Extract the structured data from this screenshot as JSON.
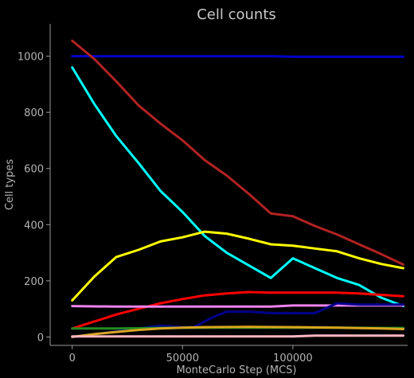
{
  "chart_data": {
    "type": "line",
    "title": "Cell counts",
    "xlabel": "MonteCarlo Step (MCS)",
    "ylabel": "Cell types",
    "xlim": [
      -10000,
      152000
    ],
    "ylim": [
      -30,
      1115
    ],
    "xticks": [
      0,
      50000,
      100000
    ],
    "yticks": [
      0,
      200,
      400,
      600,
      800,
      1000
    ],
    "legend": "none",
    "grid": false,
    "series": [
      {
        "color": "#0000cc",
        "x": [
          0,
          20000,
          60000,
          90000,
          100000,
          150000
        ],
        "y": [
          1000,
          1000,
          1000,
          1000,
          998,
          998
        ]
      },
      {
        "color": "#b22222",
        "x": [
          0,
          10000,
          20000,
          30000,
          40000,
          50000,
          60000,
          70000,
          80000,
          90000,
          100000,
          110000,
          120000,
          130000,
          140000,
          150000
        ],
        "y": [
          1055,
          990,
          910,
          825,
          760,
          700,
          630,
          575,
          510,
          440,
          430,
          395,
          365,
          330,
          295,
          258
        ]
      },
      {
        "color": "#00ffff",
        "x": [
          0,
          10000,
          20000,
          30000,
          40000,
          50000,
          60000,
          70000,
          80000,
          90000,
          100000,
          110000,
          120000,
          130000,
          140000,
          150000
        ],
        "y": [
          960,
          830,
          715,
          620,
          520,
          445,
          360,
          300,
          255,
          210,
          280,
          245,
          210,
          185,
          140,
          110
        ]
      },
      {
        "color": "#ffff00",
        "x": [
          0,
          10000,
          20000,
          30000,
          40000,
          50000,
          60000,
          70000,
          80000,
          90000,
          100000,
          110000,
          120000,
          130000,
          140000,
          150000
        ],
        "y": [
          130,
          215,
          285,
          310,
          340,
          355,
          375,
          368,
          350,
          330,
          325,
          315,
          305,
          280,
          260,
          245
        ]
      },
      {
        "color": "#ff0000",
        "x": [
          0,
          10000,
          20000,
          30000,
          40000,
          50000,
          60000,
          70000,
          80000,
          90000,
          100000,
          110000,
          120000,
          130000,
          140000,
          150000
        ],
        "y": [
          30,
          55,
          80,
          100,
          120,
          135,
          148,
          155,
          160,
          158,
          158,
          158,
          158,
          155,
          150,
          145
        ]
      },
      {
        "color": "#ee82ee",
        "x": [
          0,
          20000,
          40000,
          60000,
          80000,
          90000,
          100000,
          120000,
          140000,
          150000
        ],
        "y": [
          110,
          108,
          108,
          108,
          108,
          108,
          112,
          112,
          112,
          112
        ]
      },
      {
        "color": "#00008b",
        "x": [
          0,
          10000,
          20000,
          30000,
          40000,
          50000,
          55000,
          60000,
          65000,
          70000,
          80000,
          90000,
          100000,
          110000,
          120000,
          130000,
          140000,
          150000
        ],
        "y": [
          0,
          10,
          20,
          30,
          40,
          35,
          35,
          55,
          75,
          90,
          90,
          85,
          85,
          85,
          120,
          115,
          115,
          115
        ]
      },
      {
        "color": "#228b22",
        "x": [
          0,
          20000,
          40000,
          60000,
          80000,
          100000,
          120000,
          140000,
          150000
        ],
        "y": [
          30,
          30,
          32,
          33,
          33,
          33,
          33,
          32,
          32
        ]
      },
      {
        "color": "#daa520",
        "x": [
          0,
          10000,
          20000,
          30000,
          40000,
          50000,
          60000,
          80000,
          100000,
          120000,
          140000,
          150000
        ],
        "y": [
          0,
          10,
          18,
          25,
          30,
          33,
          35,
          36,
          35,
          33,
          30,
          28
        ]
      },
      {
        "color": "#ffb6c1",
        "x": [
          0,
          50000,
          100000,
          110000,
          150000
        ],
        "y": [
          2,
          2,
          2,
          5,
          5
        ]
      }
    ]
  }
}
